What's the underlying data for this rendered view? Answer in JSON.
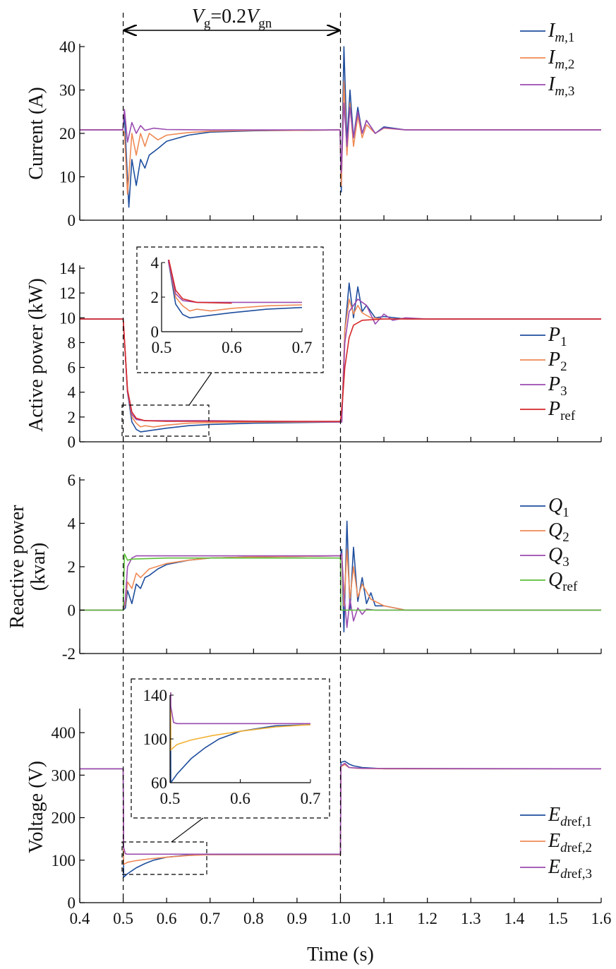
{
  "colors": {
    "blue": "#1f4e9e",
    "orange": "#ef8a55",
    "purple": "#9b4bb0",
    "red": "#d62728",
    "green": "#5cbf3a",
    "yellow": "#f2b234",
    "axis": "#000000"
  },
  "annotation": {
    "V": "V",
    "g": "g",
    "eq": "=0.2",
    "V2": "V",
    "gn": "gn",
    "x_range": [
      0.5,
      1.0
    ]
  },
  "x_axis": {
    "label": "Time (s)",
    "range": [
      0.4,
      1.6
    ],
    "ticks": [
      "0.4",
      "0.5",
      "0.6",
      "0.7",
      "0.8",
      "0.9",
      "1.0",
      "1.1",
      "1.2",
      "1.3",
      "1.4",
      "1.5",
      "1.6"
    ]
  },
  "chart_data": [
    {
      "type": "line",
      "ylabel": "Current (A)",
      "ylim": [
        0,
        40
      ],
      "yticks": [
        "0",
        "10",
        "20",
        "30",
        "40"
      ],
      "legend_placement": "top-right",
      "series": [
        {
          "name_base": "I",
          "name_sub": "m,1",
          "color": "blue",
          "x": [
            0.4,
            0.499,
            0.503,
            0.513,
            0.52,
            0.53,
            0.54,
            0.55,
            0.56,
            0.58,
            0.6,
            0.65,
            0.7,
            0.8,
            0.9,
            0.999,
            1.002,
            1.008,
            1.015,
            1.022,
            1.03,
            1.04,
            1.05,
            1.06,
            1.08,
            1.1,
            1.15,
            1.2,
            1.6
          ],
          "y": [
            20.8,
            20.8,
            24,
            3,
            14,
            8,
            14,
            12,
            15,
            16.5,
            18.2,
            19.6,
            20.3,
            20.6,
            20.7,
            20.8,
            6.5,
            40,
            18,
            30,
            19,
            26,
            20,
            23,
            20,
            21.5,
            20.8,
            20.8,
            20.8
          ]
        },
        {
          "name_base": "I",
          "name_sub": "m,2",
          "color": "orange",
          "x": [
            0.4,
            0.499,
            0.503,
            0.51,
            0.52,
            0.53,
            0.54,
            0.55,
            0.56,
            0.58,
            0.6,
            0.65,
            0.7,
            0.8,
            0.9,
            0.999,
            1.002,
            1.008,
            1.015,
            1.022,
            1.03,
            1.04,
            1.05,
            1.06,
            1.08,
            1.1,
            1.15,
            1.2,
            1.6
          ],
          "y": [
            20.8,
            20.8,
            20,
            6,
            20,
            15,
            20,
            17,
            20,
            18.5,
            19.6,
            20.2,
            20.5,
            20.7,
            20.7,
            20.8,
            8,
            32,
            15,
            27,
            17,
            24,
            19,
            22,
            20,
            21.2,
            20.8,
            20.8,
            20.8
          ]
        },
        {
          "name_base": "I",
          "name_sub": "m,3",
          "color": "purple",
          "x": [
            0.4,
            0.499,
            0.503,
            0.51,
            0.52,
            0.53,
            0.54,
            0.55,
            0.57,
            0.6,
            0.7,
            0.999,
            1.002,
            1.008,
            1.015,
            1.022,
            1.03,
            1.04,
            1.05,
            1.06,
            1.08,
            1.1,
            1.15,
            1.6
          ],
          "y": [
            20.8,
            20.8,
            25.5,
            18,
            22.5,
            20,
            21.8,
            20.7,
            21.2,
            20.9,
            20.8,
            20.8,
            11,
            27,
            17,
            26,
            19,
            25,
            20,
            23,
            20,
            21.3,
            20.8,
            20.8
          ]
        }
      ]
    },
    {
      "type": "line",
      "ylabel": "Active power (kW)",
      "ylim": [
        0,
        14
      ],
      "yticks": [
        "0",
        "2",
        "4",
        "6",
        "8",
        "10",
        "12",
        "14"
      ],
      "legend_placement": "right",
      "series": [
        {
          "name_base": "P",
          "name_sub": "1",
          "color": "blue",
          "x": [
            0.4,
            0.5,
            0.51,
            0.52,
            0.53,
            0.54,
            0.55,
            0.57,
            0.6,
            0.65,
            0.7,
            0.8,
            1.0,
            1.003,
            1.01,
            1.02,
            1.03,
            1.04,
            1.05,
            1.06,
            1.08,
            1.1,
            1.15,
            1.6
          ],
          "y": [
            9.9,
            9.9,
            4,
            1.6,
            1.0,
            0.8,
            0.85,
            0.95,
            1.1,
            1.3,
            1.4,
            1.5,
            1.6,
            1.6,
            9,
            12.8,
            10,
            12.5,
            10.5,
            11,
            10,
            10.1,
            9.9,
            9.9
          ]
        },
        {
          "name_base": "P",
          "name_sub": "2",
          "color": "orange",
          "x": [
            0.4,
            0.5,
            0.51,
            0.52,
            0.53,
            0.54,
            0.55,
            0.57,
            0.6,
            0.65,
            0.7,
            0.8,
            1.0,
            1.003,
            1.01,
            1.02,
            1.03,
            1.04,
            1.05,
            1.07,
            1.1,
            1.6
          ],
          "y": [
            9.9,
            9.9,
            4,
            2,
            1.5,
            1.2,
            1.3,
            1.2,
            1.35,
            1.5,
            1.55,
            1.6,
            1.6,
            1.6,
            9,
            11.5,
            10.3,
            11,
            10.4,
            10,
            9.9,
            9.9
          ]
        },
        {
          "name_base": "P",
          "name_sub": "3",
          "color": "purple",
          "x": [
            0.4,
            0.5,
            0.51,
            0.52,
            0.53,
            0.55,
            0.6,
            0.7,
            1.0,
            1.003,
            1.01,
            1.02,
            1.04,
            1.06,
            1.08,
            1.1,
            1.12,
            1.15,
            1.2,
            1.6
          ],
          "y": [
            9.9,
            9.9,
            4,
            2.2,
            1.8,
            1.7,
            1.7,
            1.7,
            1.6,
            1.6,
            8,
            10.5,
            11.5,
            11,
            9.5,
            10.3,
            9.8,
            10,
            9.9,
            9.9
          ]
        },
        {
          "name_base": "P",
          "name_sub": "ref",
          "color": "red",
          "x": [
            0.4,
            0.5,
            0.505,
            0.51,
            0.52,
            0.53,
            0.55,
            0.6,
            1.0,
            1.005,
            1.01,
            1.02,
            1.03,
            1.05,
            1.1,
            1.6
          ],
          "y": [
            9.9,
            9.9,
            7,
            4.2,
            2.4,
            1.9,
            1.7,
            1.65,
            1.65,
            3.5,
            6,
            8.4,
            9.4,
            9.8,
            9.9,
            9.9
          ]
        }
      ],
      "inset": {
        "xlim": [
          0.5,
          0.7
        ],
        "ylim": [
          0,
          4
        ],
        "xticks": [
          "0.5",
          "0.6",
          "0.7"
        ],
        "yticks": [
          "0",
          "2",
          "4"
        ]
      }
    },
    {
      "type": "line",
      "ylabel_line1": "Reactive power",
      "ylabel_line2": "(kvar)",
      "ylim": [
        -2,
        6
      ],
      "yticks": [
        "-2",
        "0",
        "2",
        "4",
        "6"
      ],
      "legend_placement": "right",
      "series": [
        {
          "name_base": "Q",
          "name_sub": "1",
          "color": "blue",
          "x": [
            0.4,
            0.5,
            0.505,
            0.51,
            0.52,
            0.53,
            0.54,
            0.55,
            0.56,
            0.58,
            0.6,
            0.65,
            0.7,
            0.8,
            1.0,
            1.003,
            1.008,
            1.015,
            1.022,
            1.03,
            1.04,
            1.05,
            1.06,
            1.07,
            1.08,
            1.1,
            1.15,
            1.6
          ],
          "y": [
            0,
            0,
            0.1,
            0.9,
            0.3,
            1.2,
            1.0,
            1.5,
            1.6,
            1.9,
            2.1,
            2.3,
            2.4,
            2.45,
            2.5,
            2.8,
            -1.0,
            4.1,
            0,
            2.9,
            0.4,
            1.5,
            0.3,
            0.8,
            0.2,
            0.2,
            0,
            0
          ]
        },
        {
          "name_base": "Q",
          "name_sub": "2",
          "color": "orange",
          "x": [
            0.4,
            0.5,
            0.505,
            0.51,
            0.52,
            0.53,
            0.54,
            0.56,
            0.6,
            0.65,
            0.7,
            0.8,
            1.0,
            1.003,
            1.008,
            1.015,
            1.022,
            1.03,
            1.04,
            1.05,
            1.07,
            1.1,
            1.15,
            1.6
          ],
          "y": [
            0,
            0,
            0.3,
            1.3,
            1.0,
            1.7,
            1.5,
            1.9,
            2.15,
            2.3,
            2.4,
            2.45,
            2.5,
            2.6,
            0.2,
            2.8,
            0.5,
            2.0,
            0.6,
            1.2,
            0.5,
            0.2,
            0,
            0
          ]
        },
        {
          "name_base": "Q",
          "name_sub": "3",
          "color": "purple",
          "x": [
            0.4,
            0.5,
            0.505,
            0.51,
            0.52,
            0.53,
            0.55,
            0.6,
            0.7,
            1.0,
            1.003,
            1.008,
            1.015,
            1.022,
            1.03,
            1.04,
            1.05,
            1.06,
            1.08,
            1.1,
            1.6
          ],
          "y": [
            0,
            0,
            0.5,
            2.0,
            2.4,
            2.5,
            2.5,
            2.5,
            2.5,
            2.5,
            2.6,
            0.8,
            -0.8,
            0.5,
            -0.5,
            0.1,
            -0.2,
            0.05,
            0,
            0,
            0
          ]
        },
        {
          "name_base": "Q",
          "name_sub": "ref",
          "color": "green",
          "x": [
            0.4,
            0.5,
            0.503,
            0.51,
            0.52,
            0.6,
            1.0,
            1.001,
            1.6
          ],
          "y": [
            0,
            0,
            2.6,
            2.3,
            2.35,
            2.4,
            2.4,
            0,
            0
          ]
        }
      ]
    },
    {
      "type": "line",
      "ylabel": "Voltage (V)",
      "ylim": [
        0,
        450
      ],
      "yticks": [
        "0",
        "100",
        "200",
        "300",
        "400"
      ],
      "legend_placement": "bottom-right",
      "series": [
        {
          "name_base": "E",
          "name_subi": "d",
          "name_sub": "ref,1",
          "color": "blue",
          "x": [
            0.4,
            0.5,
            0.501,
            0.51,
            0.52,
            0.53,
            0.55,
            0.57,
            0.6,
            0.65,
            0.7,
            0.8,
            1.0,
            1.001,
            1.01,
            1.02,
            1.03,
            1.05,
            1.1,
            1.6
          ],
          "y": [
            315,
            315,
            60,
            68,
            75,
            82,
            92,
            100,
            107,
            112,
            113,
            113,
            113,
            330,
            333,
            326,
            322,
            318,
            315,
            315
          ]
        },
        {
          "name_base": "E",
          "name_subi": "d",
          "name_sub": "ref,2",
          "color": "orange",
          "x": [
            0.4,
            0.5,
            0.501,
            0.51,
            0.53,
            0.56,
            0.6,
            0.65,
            0.7,
            1.0,
            1.001,
            1.01,
            1.02,
            1.04,
            1.1,
            1.6
          ],
          "y": [
            315,
            315,
            90,
            95,
            99,
            103,
            107,
            111,
            113,
            113,
            320,
            325,
            318,
            316,
            315,
            315
          ]
        },
        {
          "name_base": "E",
          "name_subi": "d",
          "name_sub": "ref,3",
          "color": "purple",
          "x": [
            0.4,
            0.5,
            0.501,
            0.505,
            0.51,
            0.6,
            0.7,
            1.0,
            1.001,
            1.01,
            1.02,
            1.05,
            1.6
          ],
          "y": [
            315,
            315,
            130,
            115,
            114,
            114,
            114,
            114,
            322,
            328,
            318,
            316,
            315
          ]
        }
      ],
      "inset": {
        "xlim": [
          0.5,
          0.7
        ],
        "ylim": [
          60,
          140
        ],
        "xticks": [
          "0.5",
          "0.6",
          "0.7"
        ],
        "yticks": [
          "60",
          "100",
          "140"
        ],
        "series_colors": [
          "blue",
          "yellow",
          "purple"
        ]
      }
    }
  ]
}
